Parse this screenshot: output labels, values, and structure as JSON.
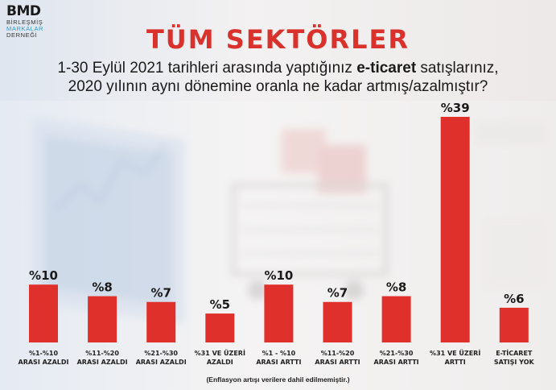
{
  "brand": {
    "logo": "BMD",
    "line1": "BİRLEŞMİŞ",
    "line2": "MARKALAR",
    "line3": "DERNEĞİ",
    "accent_color": "#2b9bd3"
  },
  "title": "TÜM SEKTÖRLER",
  "question": {
    "part1": "1-30 Eylül 2021 tarihleri arasında yaptığınız ",
    "bold": "e-ticaret",
    "part2": " satışlarınız,",
    "line2": "2020 yılının aynı dönemine oranla ne kadar artmış/azalmıştır?"
  },
  "footnote": "(Enflasyon artışı verilere dahil edilmemiştir.)",
  "colors": {
    "bar": "#e0302b",
    "title": "#d9312b",
    "text": "#1a1a1a"
  },
  "chart_data": {
    "type": "bar",
    "categories": [
      [
        "%1-%10",
        "ARASI AZALDI"
      ],
      [
        "%11-%20",
        "ARASI AZALDI"
      ],
      [
        "%21-%30",
        "ARASI AZALDI"
      ],
      [
        "%31 VE ÜZERİ",
        "AZALDI"
      ],
      [
        "%1 - %10",
        "ARASI ARTTI"
      ],
      [
        "%11-%20",
        "ARASI ARTTI"
      ],
      [
        "%21-%30",
        "ARASI ARTTI"
      ],
      [
        "%31 VE ÜZERİ",
        "ARTTI"
      ],
      [
        "E-TİCARET",
        "SATIŞI YOK"
      ]
    ],
    "values": [
      10,
      8,
      7,
      5,
      10,
      7,
      8,
      39,
      6
    ],
    "value_labels": [
      "%10",
      "%8",
      "%7",
      "%5",
      "%10",
      "%7",
      "%8",
      "%39",
      "%6"
    ],
    "ylim": [
      0,
      39
    ],
    "grid": false,
    "legend": "none"
  }
}
